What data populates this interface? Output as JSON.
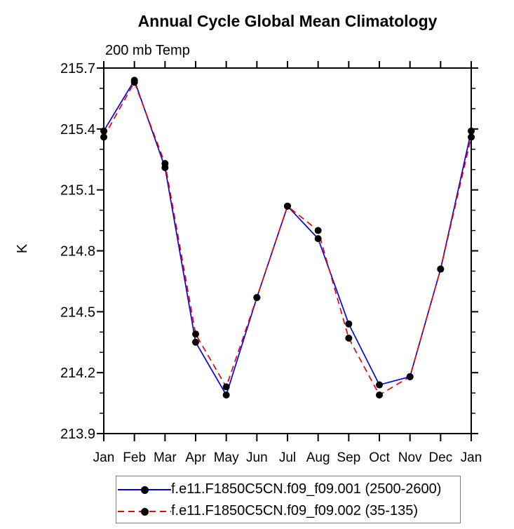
{
  "chart": {
    "background": "#ffffff",
    "axis_color": "#000000",
    "text_color": "#000000"
  },
  "chart_data": {
    "type": "line",
    "title": "Annual Cycle Global Mean Climatology",
    "subtitle": "200 mb Temp",
    "xlabel": "",
    "ylabel": "K",
    "categories": [
      "Jan",
      "Feb",
      "Mar",
      "Apr",
      "May",
      "Jun",
      "Jul",
      "Aug",
      "Sep",
      "Oct",
      "Nov",
      "Dec",
      "Jan"
    ],
    "series": [
      {
        "name": "f.e11.F1850C5CN.f09_f09.001 (2500-2600)",
        "color": "#0000ee",
        "line_style": "solid",
        "marker": "filled-circle",
        "marker_color": "#000000",
        "values": [
          215.39,
          215.64,
          215.21,
          214.35,
          214.09,
          214.57,
          215.02,
          214.86,
          214.44,
          214.14,
          214.18,
          214.71,
          215.39
        ]
      },
      {
        "name": "f.e11.F1850C5CN.f09_f09.002 (35-135)",
        "color": "#ee0000",
        "line_style": "dashed",
        "marker": "filled-circle",
        "marker_color": "#000000",
        "values": [
          215.36,
          215.63,
          215.23,
          214.39,
          214.13,
          214.57,
          215.02,
          214.9,
          214.37,
          214.09,
          214.18,
          214.71,
          215.36
        ]
      }
    ],
    "ylim": [
      213.9,
      215.7
    ],
    "ytick_step": 0.3,
    "ytick_minor_step": 0.1,
    "ytick_labels": [
      "215.7",
      "215.4",
      "215.1",
      "214.8",
      "214.5",
      "214.2",
      "213.9"
    ],
    "grid": false,
    "legend_position": "bottom"
  }
}
